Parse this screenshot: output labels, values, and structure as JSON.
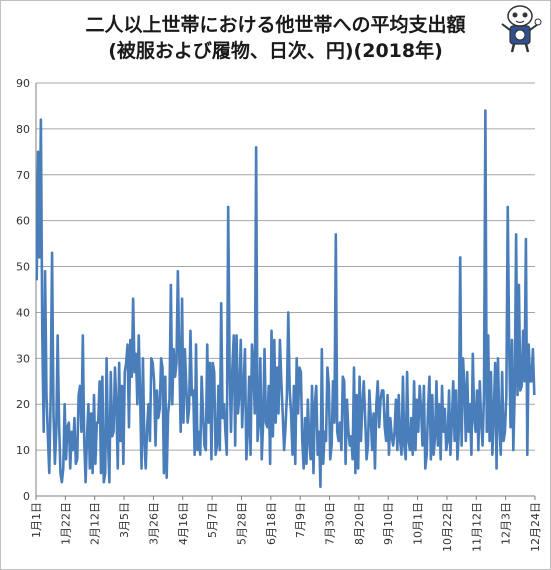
{
  "chart_data": {
    "type": "line",
    "title_line1": "二人以上世帯における他世帯への平均支出額",
    "title_line2": "(被服および履物、日次、円)(2018年)",
    "ylim": [
      0,
      90
    ],
    "y_ticks": [
      "0",
      "10",
      "20",
      "30",
      "40",
      "50",
      "60",
      "70",
      "80",
      "90"
    ],
    "x_tick_labels": [
      "1月1日",
      "1月22日",
      "2月12日",
      "3月5日",
      "3月26日",
      "4月16日",
      "5月7日",
      "5月28日",
      "6月18日",
      "7月9日",
      "7月30日",
      "8月20日",
      "9月10日",
      "10月1日",
      "10月22日",
      "11月12日",
      "12月3日",
      "12月24日"
    ],
    "series_color": "#4a7ebb",
    "grid": true,
    "legend": "none",
    "series": [
      {
        "values": [
          47,
          75,
          52,
          82,
          35,
          14,
          49,
          22,
          13,
          5,
          22,
          53,
          18,
          7,
          14,
          35,
          16,
          5,
          3,
          6,
          20,
          8,
          15,
          16,
          6,
          14,
          10,
          17,
          7,
          8,
          22,
          24,
          14,
          35,
          12,
          3,
          13,
          20,
          6,
          18,
          5,
          22,
          7,
          16,
          16,
          25,
          5,
          26,
          3,
          5,
          30,
          12,
          3,
          27,
          13,
          14,
          28,
          20,
          6,
          29,
          12,
          24,
          7,
          27,
          29,
          33,
          15,
          34,
          26,
          43,
          27,
          31,
          20,
          35,
          22,
          6,
          30,
          12,
          6,
          15,
          20,
          12,
          30,
          29,
          25,
          11,
          23,
          17,
          19,
          30,
          28,
          5,
          26,
          4,
          18,
          21,
          46,
          20,
          32,
          26,
          29,
          49,
          31,
          14,
          43,
          16,
          32,
          24,
          16,
          19,
          36,
          22,
          23,
          9,
          33,
          10,
          14,
          9,
          26,
          18,
          11,
          10,
          33,
          16,
          29,
          8,
          29,
          27,
          9,
          11,
          24,
          10,
          42,
          17,
          20,
          14,
          9,
          63,
          28,
          14,
          28,
          35,
          11,
          35,
          18,
          22,
          34,
          15,
          24,
          32,
          8,
          14,
          26,
          9,
          33,
          28,
          18,
          76,
          12,
          16,
          30,
          8,
          16,
          32,
          16,
          15,
          24,
          7,
          36,
          13,
          34,
          16,
          28,
          18,
          34,
          25,
          18,
          10,
          15,
          22,
          40,
          23,
          18,
          9,
          24,
          7,
          30,
          18,
          28,
          27,
          12,
          6,
          17,
          7,
          21,
          12,
          8,
          24,
          5,
          20,
          24,
          9,
          14,
          2,
          32,
          7,
          14,
          12,
          28,
          24,
          8,
          11,
          25,
          16,
          57,
          14,
          12,
          16,
          10,
          26,
          25,
          7,
          21,
          14,
          11,
          13,
          8,
          28,
          5,
          22,
          6,
          26,
          12,
          20,
          25,
          17,
          8,
          11,
          23,
          17,
          10,
          18,
          6,
          20,
          25,
          15,
          21,
          23,
          23,
          15,
          12,
          22,
          9,
          17,
          13,
          11,
          14,
          21,
          10,
          22,
          12,
          9,
          26,
          11,
          8,
          27,
          12,
          10,
          17,
          9,
          25,
          10,
          21,
          14,
          24,
          19,
          11,
          24,
          6,
          9,
          19,
          26,
          8,
          22,
          9,
          13,
          25,
          11,
          20,
          8,
          24,
          14,
          19,
          10,
          12,
          23,
          9,
          16,
          25,
          12,
          23,
          8,
          14,
          52,
          11,
          30,
          24,
          12,
          27,
          14,
          20,
          9,
          31,
          17,
          14,
          23,
          10,
          25,
          16,
          11,
          22,
          84,
          14,
          35,
          12,
          27,
          9,
          18,
          29,
          6,
          30,
          16,
          9,
          27,
          12,
          14,
          22,
          63,
          33,
          15,
          34,
          10,
          23,
          57,
          22,
          46,
          23,
          24,
          36,
          25,
          56,
          9,
          33,
          25,
          25,
          32,
          22
        ]
      }
    ]
  }
}
